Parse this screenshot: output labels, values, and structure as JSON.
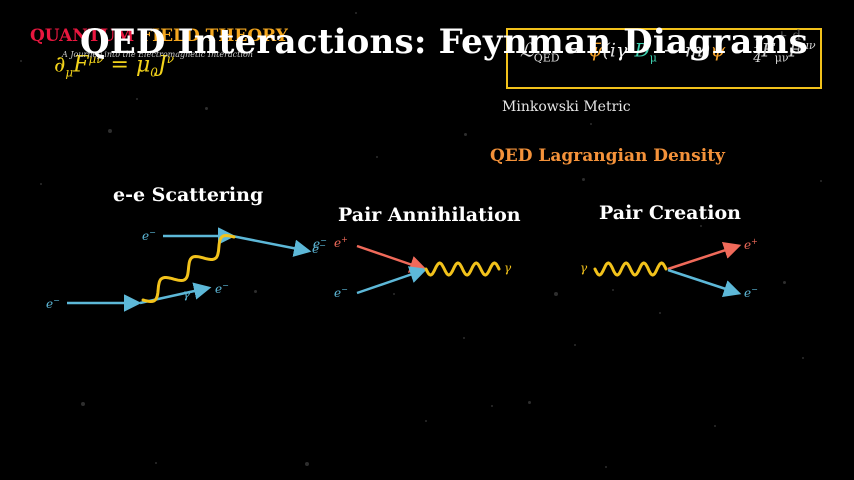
{
  "header": {
    "brand_part1": "QUANTUM ",
    "brand_part2": "FIELD THEORY",
    "tagline": "A Journey into the Electromagnetic Interaction",
    "maxwell_equation": {
      "lhs": "∂",
      "lhs_sub": "μ",
      "field": "F",
      "field_sup": "μν",
      "eq": " = μ",
      "mu_sub": "0",
      "current": "J",
      "current_sup": "ν"
    }
  },
  "title": "QED Interactions: Feynman Diagrams",
  "lagrangian": {
    "prefix": "ℒ",
    "prefix_sub": "QED",
    "eq": " = ",
    "psibar": "ψ̄",
    "open": "(i",
    "gamma": "γ",
    "gamma_sup": "μ",
    "d": "D",
    "d_sub": "μ",
    "mass": " − m)",
    "psi": "ψ",
    "minus": " − ",
    "frac_num": "1",
    "frac_den": "4",
    "f1": "F",
    "f1_sub": "μν",
    "f2": "F",
    "f2_sup": "μν",
    "corner": "+ d"
  },
  "labels": {
    "minkowski": "Minkowski Metric",
    "qed_lagrangian": "QED Lagrangian Density"
  },
  "diagrams": [
    {
      "title": "e-e Scattering",
      "particles": [
        {
          "sym": "e",
          "sup": "−"
        },
        {
          "sym": "e",
          "sup": "−"
        },
        {
          "sym": "e",
          "sup": "−"
        },
        {
          "sym": "e",
          "sup": "−"
        },
        {
          "sym": "γ",
          "sup": ""
        }
      ]
    },
    {
      "title": "Pair Annihilation",
      "particles": [
        {
          "sym": "e",
          "sup": "−"
        },
        {
          "sym": "e",
          "sup": "+"
        },
        {
          "sym": "e",
          "sup": "−"
        },
        {
          "sym": "γ",
          "sup": ""
        }
      ]
    },
    {
      "title": "Pair Creation",
      "particles": [
        {
          "sym": "γ",
          "sup": ""
        },
        {
          "sym": "e",
          "sup": "+"
        },
        {
          "sym": "e",
          "sup": "−"
        }
      ]
    }
  ],
  "colors": {
    "background": "#000000",
    "brand_red": "#e8173f",
    "brand_orange": "#f4a71f",
    "electron_line": "#5db8d8",
    "positron_line": "#f06a5a",
    "photon": "#f2c21b",
    "accent_box": "#f2c21b",
    "subtitle_orange": "#f4923a"
  }
}
